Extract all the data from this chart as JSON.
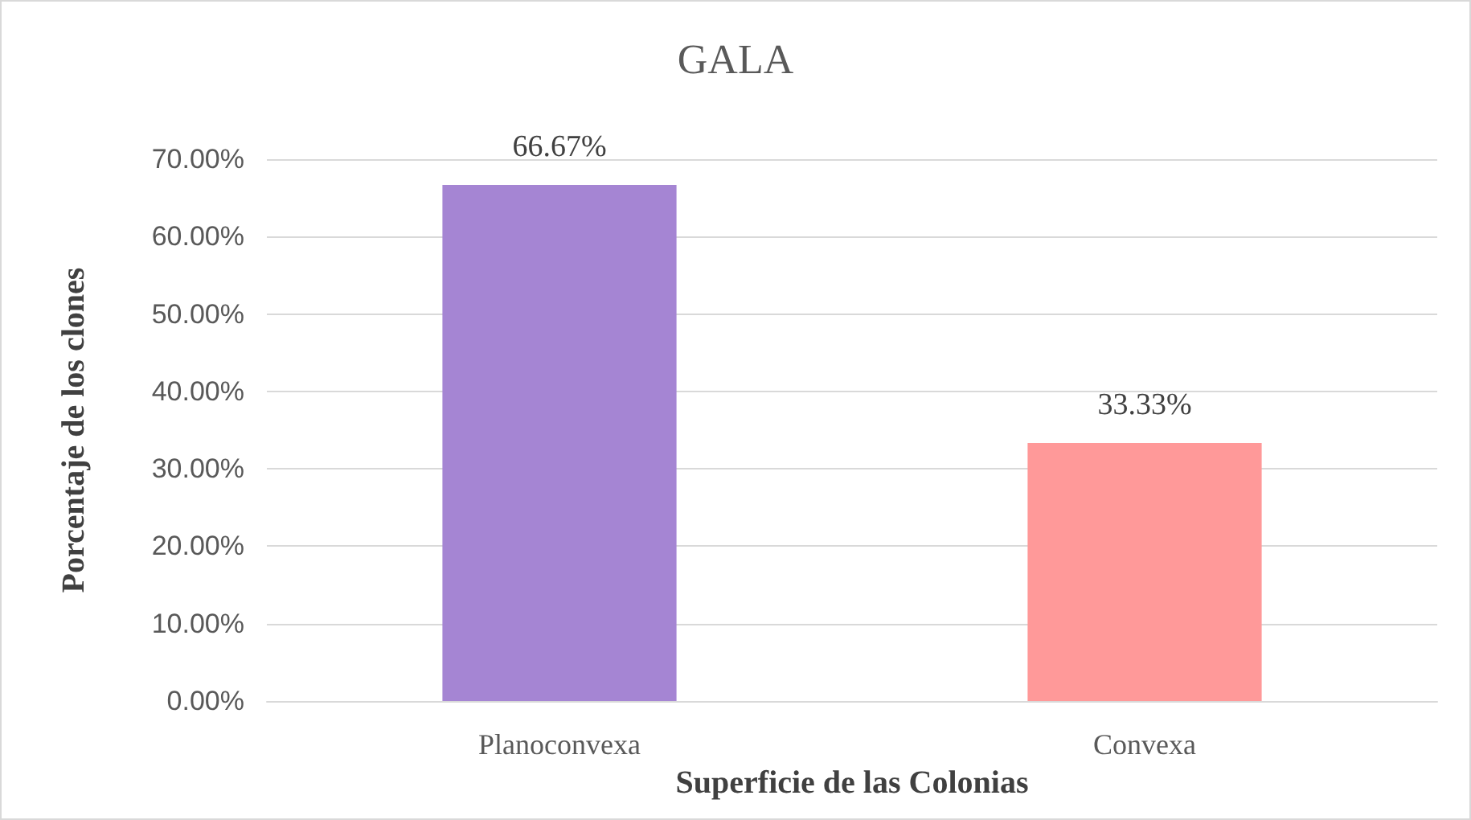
{
  "chart_data": {
    "type": "bar",
    "title": "GALA",
    "xlabel": "Superficie de las Colonias",
    "ylabel": "Porcentaje de los clones",
    "categories": [
      "Planoconvexa",
      "Convexa"
    ],
    "values": [
      66.67,
      33.33
    ],
    "colors": [
      "#a585d3",
      "#ff9999"
    ],
    "value_labels": [
      "66.67%",
      "33.33%"
    ],
    "ylim": [
      0,
      70
    ],
    "yticks": [
      {
        "value": 0,
        "label": "0.00%"
      },
      {
        "value": 10,
        "label": "10.00%"
      },
      {
        "value": 20,
        "label": "20.00%"
      },
      {
        "value": 30,
        "label": "30.00%"
      },
      {
        "value": 40,
        "label": "40.00%"
      },
      {
        "value": 50,
        "label": "50.00%"
      },
      {
        "value": 60,
        "label": "60.00%"
      },
      {
        "value": 70,
        "label": "70.00%"
      }
    ],
    "grid": "y"
  }
}
